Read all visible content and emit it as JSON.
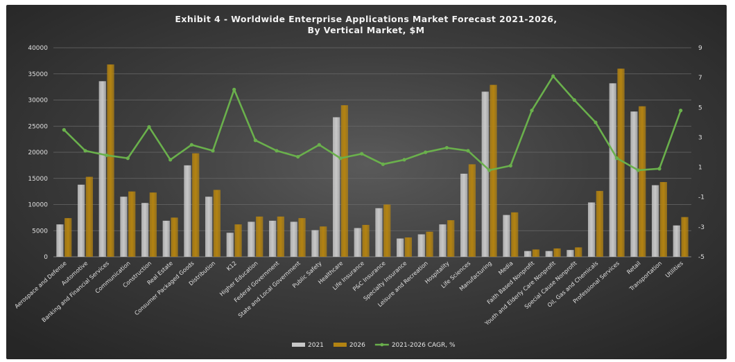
{
  "chart_data": {
    "type": "bar",
    "title": "Exhibit 4 - Worldwide Enterprise Applications Market Forecast 2021-2026,",
    "subtitle": "By Vertical Market, $M",
    "xlabel": "",
    "ylabel": "",
    "ylim": [
      0,
      40000
    ],
    "y_ticks": [
      0,
      5000,
      10000,
      15000,
      20000,
      25000,
      30000,
      35000,
      40000
    ],
    "y2lim": [
      -5,
      9
    ],
    "y2_ticks": [
      -5,
      -3,
      -1,
      1,
      3,
      5,
      7,
      9
    ],
    "grid": true,
    "legend_position": "bottom",
    "categories": [
      "Aerospace and Defense",
      "Automotive",
      "Banking and Financial Services",
      "Communication",
      "Construction",
      "Real Estate",
      "Consumer Packaged Goods",
      "Distribution",
      "K12",
      "Higher Education",
      "Federal Government",
      "State and Local Government",
      "Public Safety",
      "Healthcare",
      "Life Insurance",
      "P&C Insurance",
      "Specialty Insurance",
      "Leisure and Recreation",
      "Hospitality",
      "Life Sciences",
      "Manufacturing",
      "Media",
      "Faith Based Nonprofit",
      "Youth and Elderly Care Nonprofit",
      "Special Cause Nonprofit",
      "Oil, Gas and Chemicals",
      "Professional Services",
      "Retail",
      "Transportation",
      "Utilities"
    ],
    "series": [
      {
        "name": "2021",
        "color": "#c8c8c8",
        "axis": "left",
        "kind": "bar",
        "values": [
          6200,
          13800,
          33600,
          11500,
          10300,
          6900,
          17500,
          11500,
          4600,
          6700,
          6900,
          6700,
          5100,
          26700,
          5500,
          9300,
          3500,
          4300,
          6200,
          15900,
          31600,
          8000,
          1100,
          1100,
          1300,
          10400,
          33200,
          27800,
          13700,
          6000
        ]
      },
      {
        "name": "2026",
        "color": "#b38312",
        "axis": "left",
        "kind": "bar",
        "values": [
          7400,
          15300,
          36800,
          12500,
          12300,
          7500,
          19800,
          12800,
          6200,
          7700,
          7700,
          7400,
          5800,
          29000,
          6100,
          10000,
          3700,
          4800,
          7000,
          17700,
          32900,
          8500,
          1400,
          1600,
          1800,
          12600,
          36000,
          28800,
          14300,
          7600
        ]
      },
      {
        "name": "2021-2026 CAGR, %",
        "color": "#6ab04c",
        "axis": "right",
        "kind": "line",
        "values": [
          3.5,
          2.1,
          1.8,
          1.6,
          3.7,
          1.5,
          2.5,
          2.1,
          6.2,
          2.8,
          2.1,
          1.7,
          2.5,
          1.6,
          1.9,
          1.2,
          1.5,
          2.0,
          2.3,
          2.1,
          0.8,
          1.1,
          4.8,
          7.1,
          5.5,
          4.0,
          1.6,
          0.8,
          0.9,
          4.8
        ]
      }
    ]
  }
}
